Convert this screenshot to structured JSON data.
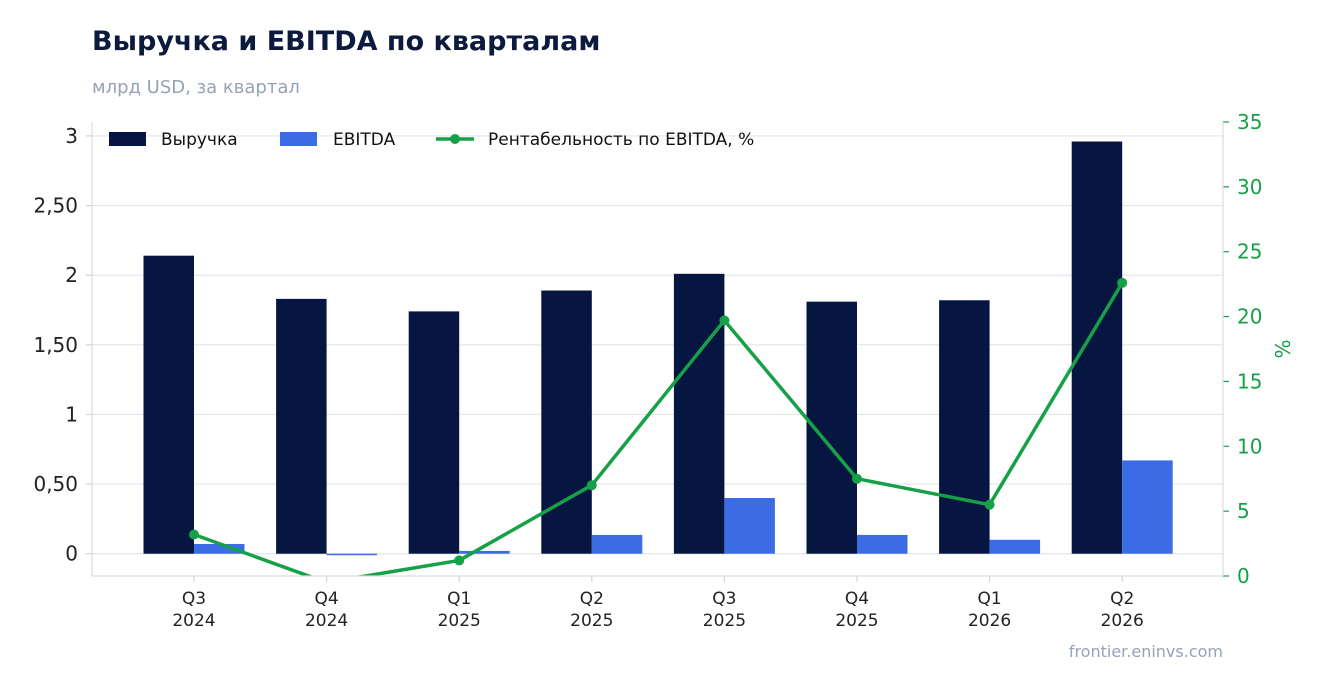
{
  "header": {
    "title": "Выручка и EBITDA по кварталам",
    "subtitle": "млрд USD, за квартал"
  },
  "footer": {
    "source": "frontier.eninvs.com"
  },
  "colors": {
    "revenue": "#061640",
    "ebitda": "#3b6ce6",
    "margin": "#16a047",
    "grid": "#e2e5ea",
    "axis_text": "#222222"
  },
  "chart_data": {
    "type": "bar",
    "categories": [
      [
        "Q3",
        "2024"
      ],
      [
        "Q4",
        "2024"
      ],
      [
        "Q1",
        "2025"
      ],
      [
        "Q2",
        "2025"
      ],
      [
        "Q3",
        "2025"
      ],
      [
        "Q4",
        "2025"
      ],
      [
        "Q1",
        "2026"
      ],
      [
        "Q2",
        "2026"
      ]
    ],
    "series": [
      {
        "name": "Выручка",
        "kind": "bar",
        "axis": "left",
        "values": [
          2.14,
          1.83,
          1.74,
          1.89,
          2.01,
          1.81,
          1.82,
          2.96
        ]
      },
      {
        "name": "EBITDA",
        "kind": "bar",
        "axis": "left",
        "values": [
          0.07,
          -0.01,
          0.02,
          0.135,
          0.4,
          0.135,
          0.1,
          0.67
        ]
      },
      {
        "name": "Рентабельность по EBITDA, %",
        "kind": "line",
        "axis": "right",
        "values": [
          3.2,
          -0.5,
          1.2,
          7.0,
          19.7,
          7.5,
          5.5,
          22.6
        ]
      }
    ],
    "y_left": {
      "ylim": [
        -0.16,
        3.1
      ],
      "ticks": [
        0,
        0.5,
        1,
        1.5,
        2,
        2.5,
        3
      ],
      "tick_labels": [
        "0",
        "0,50",
        "1",
        "1,50",
        "2",
        "2,50",
        "3"
      ],
      "label": ""
    },
    "y_right": {
      "ylim": [
        0,
        35
      ],
      "ticks": [
        0,
        5,
        10,
        15,
        20,
        25,
        30,
        35
      ],
      "tick_labels": [
        "0",
        "5",
        "10",
        "15",
        "20",
        "25",
        "30",
        "35"
      ],
      "label": "%"
    },
    "grid": true,
    "legend": "top-left"
  }
}
